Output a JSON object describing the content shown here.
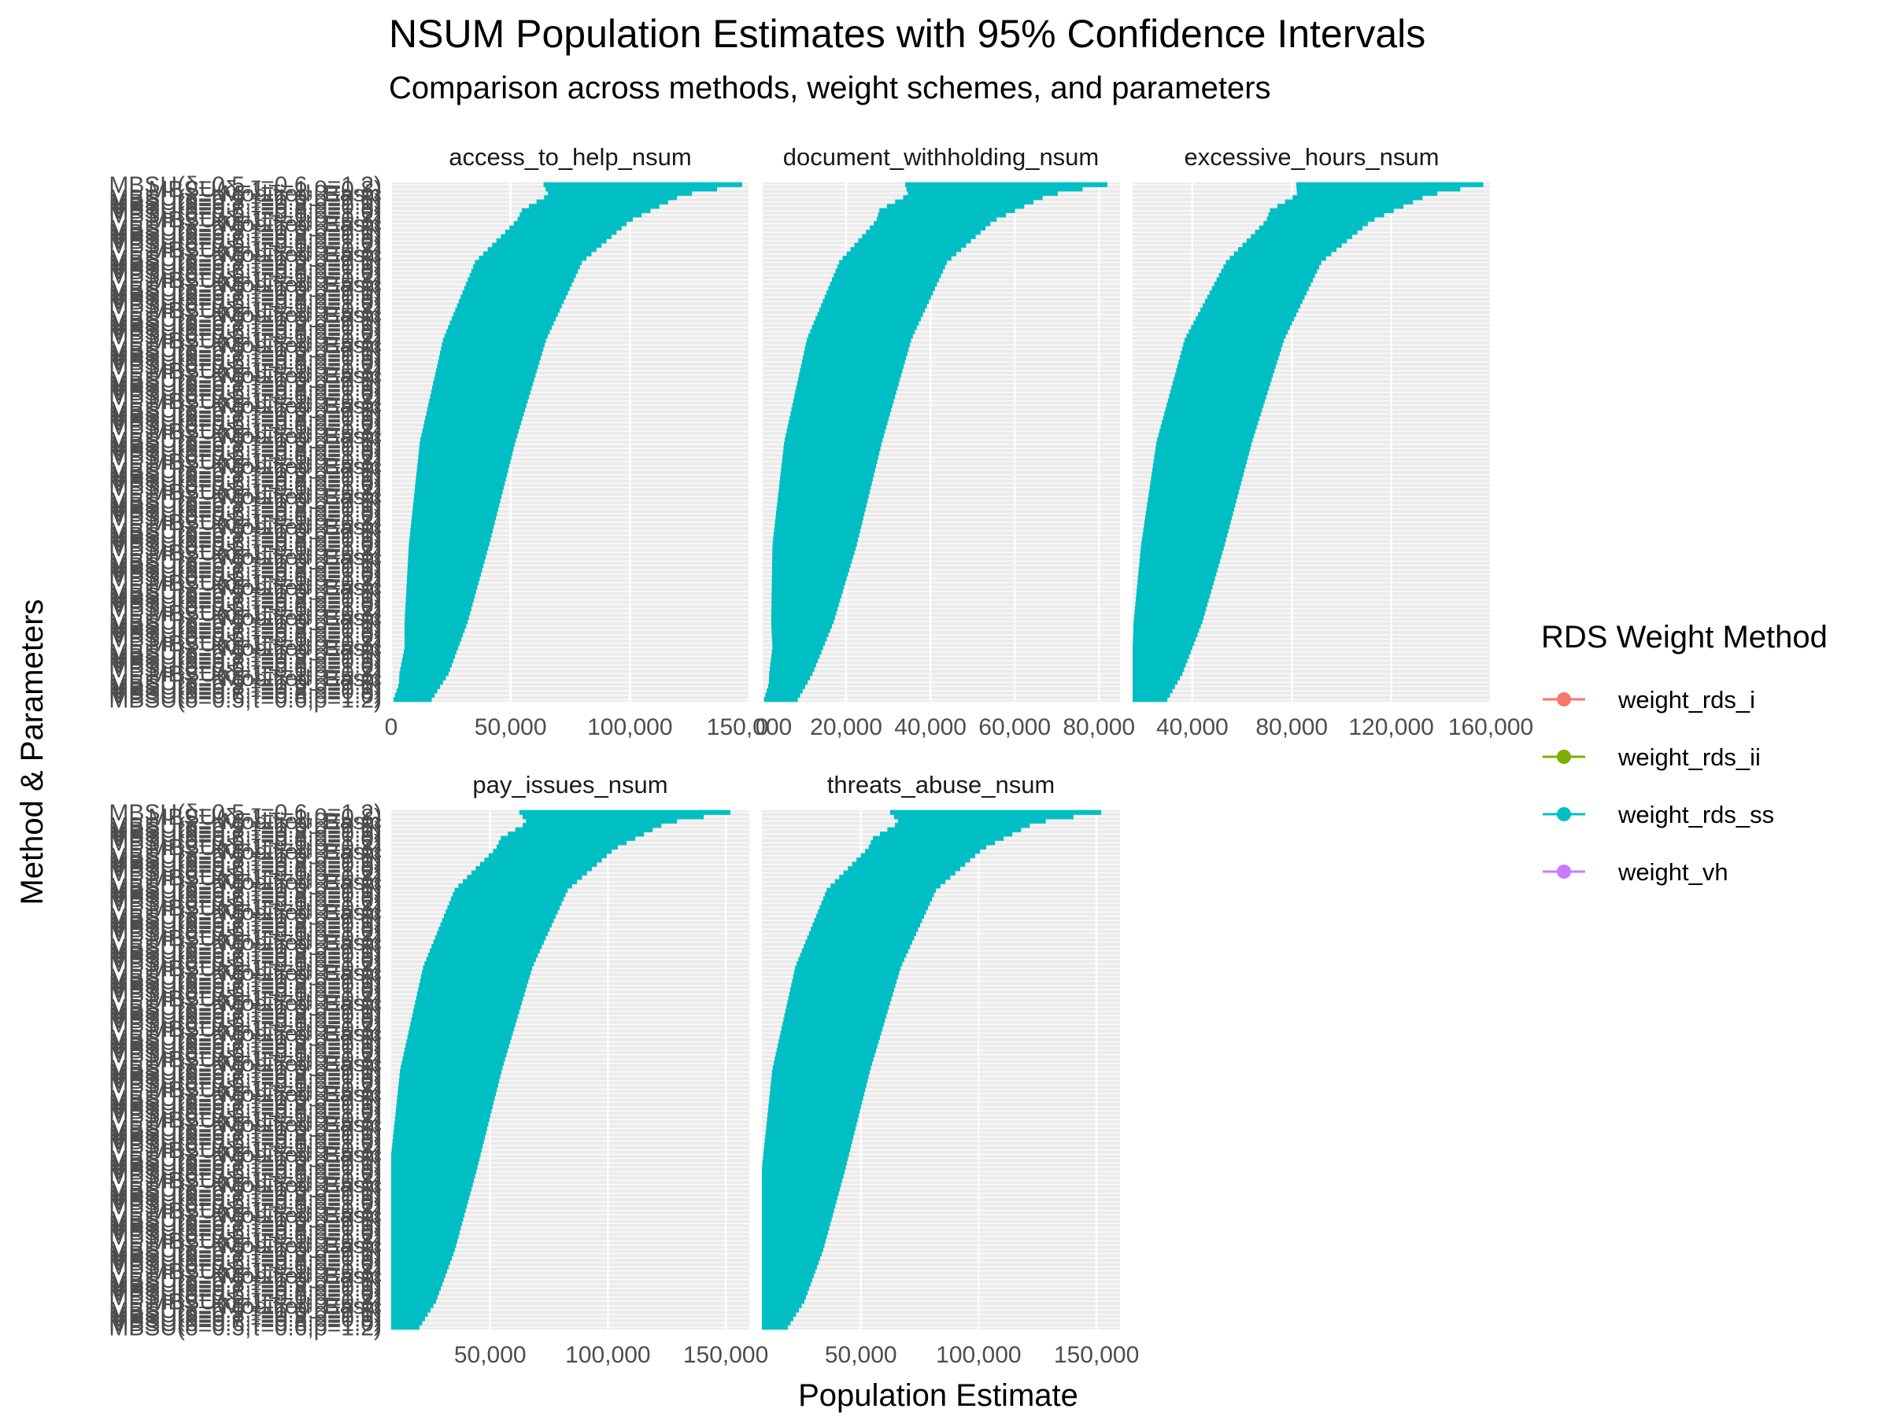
{
  "title": "NSUM Population Estimates with 95% Confidence Intervals",
  "subtitle": "Comparison across methods, weight schemes, and parameters",
  "chart_data": {
    "type": "forest",
    "xlabel": "Population Estimate",
    "ylabel": "Method & Parameters",
    "grid": true,
    "legend": {
      "title": "RDS Weight Method",
      "position": "right",
      "entries": [
        {
          "name": "weight_rds_i",
          "color": "#F8766D"
        },
        {
          "name": "weight_rds_ii",
          "color": "#7CAE00"
        },
        {
          "name": "weight_rds_ss",
          "color": "#00BFC4"
        },
        {
          "name": "weight_vh",
          "color": "#C77CFF"
        }
      ]
    },
    "y_category_labels": [
      "MBSU(δ=0.5,τ=0.6,ρ=1.2)",
      "MBSU(δ=0.6,τ=0.8,ρ=1.0)",
      "MBSU(δ=0.7,τ=0.8,ρ=0.9)",
      "MBSU(δ=0.8,τ=0.9,ρ=1.1)",
      "MBSU(δ=0.9,τ=1.0,ρ=0.8)",
      "Modified_Basic",
      "MBSU(δ=1,τ=1,ρ=0.8)"
    ],
    "series_drawn": "weight_rds_ss",
    "n_rows_per_panel": 120,
    "panels": [
      {
        "name": "access_to_help_nsum",
        "xlim": [
          0,
          150000
        ],
        "ticks": [
          0,
          50000,
          100000,
          150000
        ],
        "tick_labels": [
          "0",
          "50,000",
          "100,000",
          "150,000"
        ],
        "estimate_profile": [
          [
            0,
            7000
          ],
          [
            0.03,
            10000
          ],
          [
            0.1,
            14000
          ],
          [
            0.3,
            20000
          ],
          [
            0.5,
            27000
          ],
          [
            0.7,
            38000
          ],
          [
            0.85,
            52000
          ],
          [
            0.95,
            75000
          ],
          [
            1,
            95000
          ]
        ],
        "upper_profile": [
          [
            0,
            17000
          ],
          [
            0.05,
            24000
          ],
          [
            0.15,
            32000
          ],
          [
            0.3,
            41000
          ],
          [
            0.5,
            52000
          ],
          [
            0.7,
            65000
          ],
          [
            0.85,
            80000
          ],
          [
            0.93,
            100000
          ],
          [
            0.98,
            122000
          ],
          [
            1,
            147000
          ]
        ]
      },
      {
        "name": "document_withholding_nsum",
        "xlim": [
          0,
          85000
        ],
        "ticks": [
          0,
          20000,
          40000,
          60000,
          80000
        ],
        "tick_labels": [
          "0",
          "20,000",
          "40,000",
          "60,000",
          "80,000"
        ],
        "estimate_profile": [
          [
            0,
            3500
          ],
          [
            0.03,
            5000
          ],
          [
            0.1,
            7000
          ],
          [
            0.3,
            10000
          ],
          [
            0.5,
            14000
          ],
          [
            0.7,
            20000
          ],
          [
            0.85,
            28000
          ],
          [
            0.95,
            40000
          ],
          [
            1,
            52000
          ]
        ],
        "upper_profile": [
          [
            0,
            8500
          ],
          [
            0.05,
            12000
          ],
          [
            0.15,
            17000
          ],
          [
            0.3,
            22500
          ],
          [
            0.5,
            28500
          ],
          [
            0.7,
            35500
          ],
          [
            0.85,
            44000
          ],
          [
            0.93,
            55000
          ],
          [
            0.98,
            68000
          ],
          [
            1,
            82000
          ]
        ]
      },
      {
        "name": "excessive_hours_nsum",
        "xlim": [
          16000,
          160000
        ],
        "ticks": [
          40000,
          80000,
          120000,
          160000
        ],
        "tick_labels": [
          "40,000",
          "80,000",
          "120,000",
          "160,000"
        ],
        "estimate_profile": [
          [
            0,
            18000
          ],
          [
            0.03,
            21000
          ],
          [
            0.1,
            25000
          ],
          [
            0.3,
            32000
          ],
          [
            0.5,
            40000
          ],
          [
            0.7,
            52000
          ],
          [
            0.85,
            68000
          ],
          [
            0.95,
            90000
          ],
          [
            1,
            110000
          ]
        ],
        "upper_profile": [
          [
            0,
            30000
          ],
          [
            0.05,
            36000
          ],
          [
            0.15,
            44000
          ],
          [
            0.3,
            53000
          ],
          [
            0.5,
            64000
          ],
          [
            0.7,
            77000
          ],
          [
            0.85,
            92000
          ],
          [
            0.93,
            112000
          ],
          [
            0.98,
            135000
          ],
          [
            1,
            157000
          ]
        ]
      },
      {
        "name": "pay_issues_nsum",
        "xlim": [
          8000,
          160000
        ],
        "ticks": [
          50000,
          100000,
          150000
        ],
        "tick_labels": [
          "50,000",
          "100,000",
          "150,000"
        ],
        "estimate_profile": [
          [
            0,
            9000
          ],
          [
            0.03,
            11000
          ],
          [
            0.1,
            15000
          ],
          [
            0.3,
            21000
          ],
          [
            0.5,
            28000
          ],
          [
            0.7,
            39000
          ],
          [
            0.85,
            53000
          ],
          [
            0.95,
            76000
          ],
          [
            1,
            96000
          ]
        ],
        "upper_profile": [
          [
            0,
            20000
          ],
          [
            0.05,
            27000
          ],
          [
            0.15,
            35000
          ],
          [
            0.3,
            44000
          ],
          [
            0.5,
            55000
          ],
          [
            0.7,
            68000
          ],
          [
            0.85,
            83000
          ],
          [
            0.93,
            103000
          ],
          [
            0.98,
            125000
          ],
          [
            1,
            152000
          ]
        ]
      },
      {
        "name": "threats_abuse_nsum",
        "xlim": [
          8000,
          160000
        ],
        "ticks": [
          50000,
          100000,
          150000
        ],
        "tick_labels": [
          "50,000",
          "100,000",
          "150,000"
        ],
        "estimate_profile": [
          [
            0,
            9000
          ],
          [
            0.03,
            11000
          ],
          [
            0.1,
            15000
          ],
          [
            0.3,
            21000
          ],
          [
            0.5,
            28000
          ],
          [
            0.7,
            39000
          ],
          [
            0.85,
            53000
          ],
          [
            0.95,
            76000
          ],
          [
            1,
            96000
          ]
        ],
        "upper_profile": [
          [
            0,
            19000
          ],
          [
            0.05,
            26000
          ],
          [
            0.15,
            34000
          ],
          [
            0.3,
            43000
          ],
          [
            0.5,
            54000
          ],
          [
            0.7,
            67000
          ],
          [
            0.85,
            82000
          ],
          [
            0.93,
            102000
          ],
          [
            0.98,
            124000
          ],
          [
            1,
            152000
          ]
        ]
      }
    ]
  }
}
